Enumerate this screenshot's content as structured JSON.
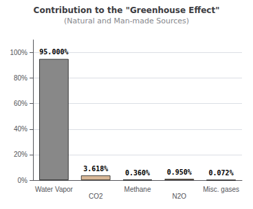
{
  "chart_data": {
    "type": "bar",
    "title": "Contribution to the \"Greenhouse Effect\"",
    "subtitle": "(Natural and Man-made Sources)",
    "categories": [
      "Water Vapor",
      "CO2",
      "Methane",
      "N2O",
      "Misc. gases"
    ],
    "values": [
      95.0,
      3.618,
      0.36,
      0.95,
      0.072
    ],
    "value_labels": [
      "95.000%",
      "3.618%",
      "0.360%",
      "0.950%",
      "0.072%"
    ],
    "data_labels": true,
    "colors": [
      "#888888",
      "#d8b898",
      "#d8b898",
      "#d8b898",
      "#d8b898"
    ],
    "ylim": [
      0,
      110
    ],
    "yticks": [
      {
        "value": 0,
        "label": "0%"
      },
      {
        "value": 20,
        "label": "20%"
      },
      {
        "value": 40,
        "label": "40%"
      },
      {
        "value": 60,
        "label": "60%"
      },
      {
        "value": 80,
        "label": "80%"
      },
      {
        "value": 100,
        "label": "100%"
      }
    ],
    "grid": true
  }
}
